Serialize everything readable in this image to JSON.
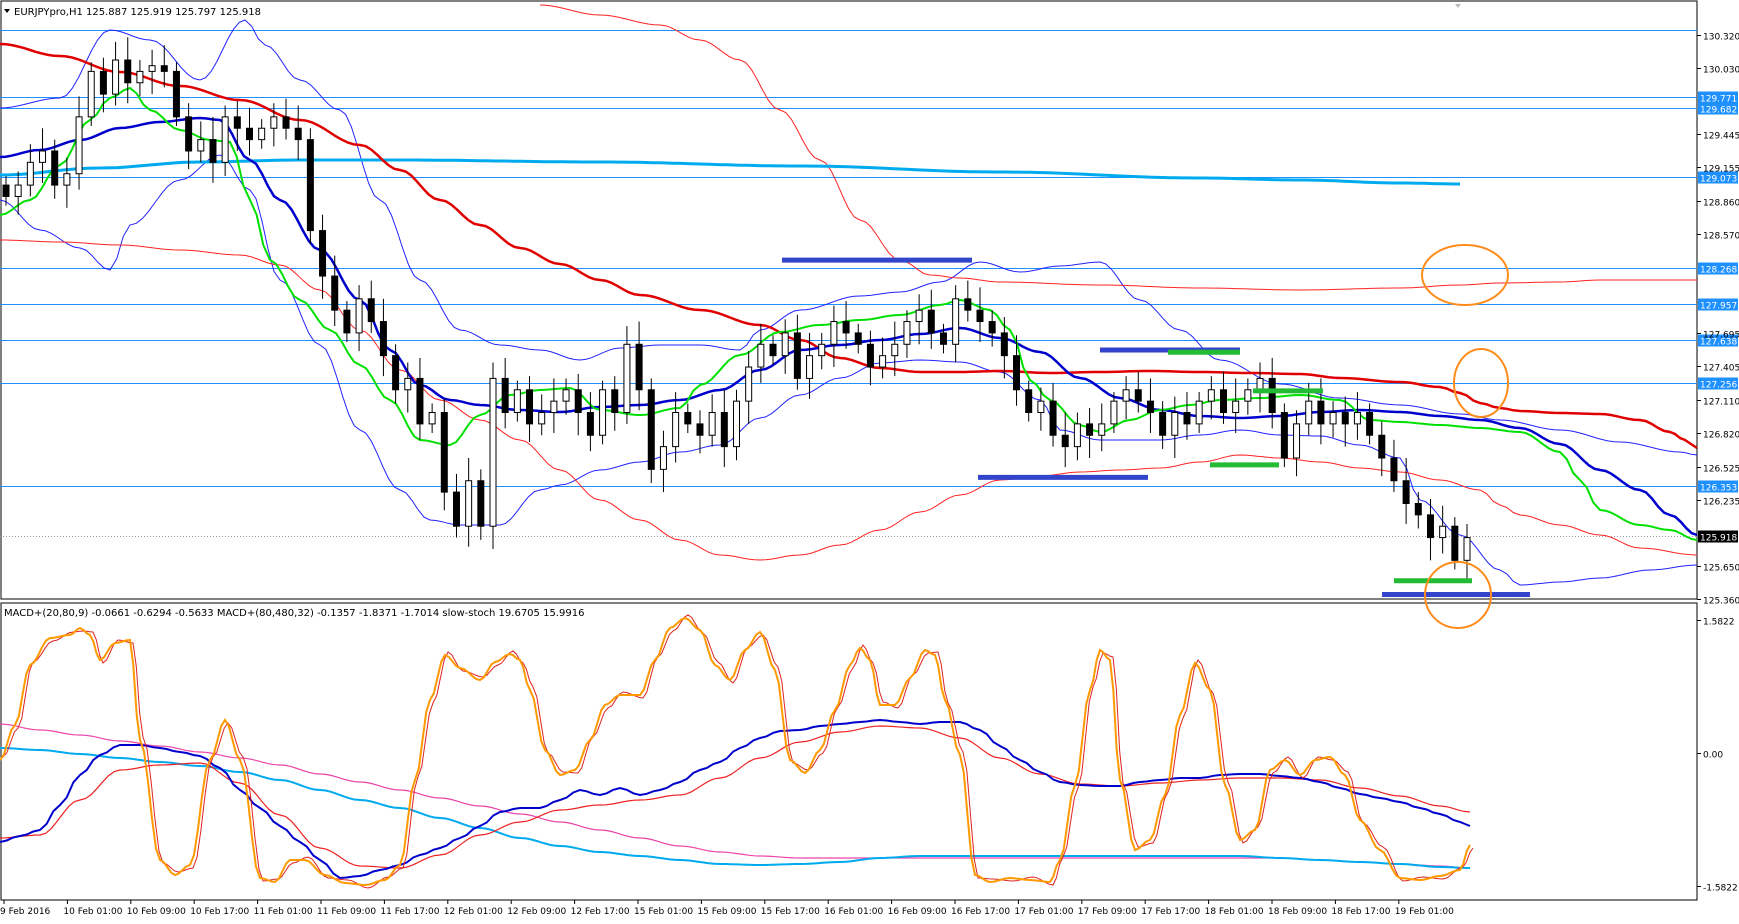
{
  "main": {
    "symbol_header": "EURJPYpro,H1",
    "ohlc_header": "125.887 125.919 125.797 125.918",
    "y_ticks": [
      "130.320",
      "130.030",
      "129.445",
      "129.155",
      "128.860",
      "128.570",
      "127.695",
      "127.405",
      "127.110",
      "126.820",
      "126.525",
      "126.235",
      "125.650",
      "125.360"
    ],
    "y_tick_values": [
      130.32,
      130.03,
      129.445,
      129.155,
      128.86,
      128.57,
      127.695,
      127.405,
      127.11,
      126.82,
      126.525,
      126.235,
      125.65,
      125.36
    ],
    "levels": [
      {
        "label": "",
        "value": 130.36
      },
      {
        "label": "129.771",
        "value": 129.771
      },
      {
        "label": "129.682",
        "value": 129.682
      },
      {
        "label": "129.073",
        "value": 129.073
      },
      {
        "label": "128.268",
        "value": 128.268
      },
      {
        "label": "127.957",
        "value": 127.957
      },
      {
        "label": "127.638",
        "value": 127.638
      },
      {
        "label": "127.256",
        "value": 127.256
      },
      {
        "label": "126.353",
        "value": 126.353
      }
    ],
    "price_label": "125.918",
    "price_value": 125.918
  },
  "indicator": {
    "header": "MACD+(20,80,9) -0.0661 -0.6294 -0.5633   MACD+(80,480,32) -0.1357 -1.8371 -1.7014   slow-stoch 19.6705 15.9916",
    "y_ticks": [
      "1.5822",
      "0.00",
      "-1.5822"
    ],
    "y_tick_values": [
      1.5822,
      0,
      -1.5822
    ]
  },
  "x_axis": {
    "labels": [
      "9 Feb 2016",
      "10 Feb 01:00",
      "10 Feb 09:00",
      "10 Feb 17:00",
      "11 Feb 01:00",
      "11 Feb 09:00",
      "11 Feb 17:00",
      "12 Feb 01:00",
      "12 Feb 09:00",
      "12 Feb 17:00",
      "15 Feb 01:00",
      "15 Feb 09:00",
      "15 Feb 17:00",
      "16 Feb 01:00",
      "16 Feb 09:00",
      "16 Feb 17:00",
      "17 Feb 01:00",
      "17 Feb 09:00",
      "17 Feb 17:00",
      "18 Feb 01:00",
      "18 Feb 09:00",
      "18 Feb 17:00",
      "19 Feb 01:00"
    ]
  },
  "colors": {
    "level_line": "#1e90ff",
    "label_bg": "#1e90ff",
    "ema_fast": "#00e000",
    "ema_mid": "#0000cc",
    "ema_slow": "#e00000",
    "long_ma": "#00aaee",
    "bands_blue": "#2222ff",
    "bands_red": "#ff2222",
    "support_blue": "#3344cc",
    "support_green": "#22bb33",
    "circle": "#ff8c1a",
    "stoch": "#ff9900",
    "stoch_signal": "#dd2222",
    "macd_fast": "#0000cc",
    "macd_fast_signal": "#ee2222",
    "macd_slow": "#00aaee",
    "macd_slow_signal": "#ee44aa"
  },
  "chart_data": [
    {
      "type": "candlestick",
      "title": "EURJPYpro,H1",
      "ylim": [
        125.3,
        130.6
      ],
      "candles_close": [
        128.9,
        129.0,
        129.2,
        129.3,
        129.0,
        129.1,
        129.6,
        130.0,
        129.8,
        130.1,
        129.9,
        130.0,
        130.05,
        130.0,
        129.6,
        129.3,
        129.4,
        129.2,
        129.6,
        129.5,
        129.4,
        129.5,
        129.6,
        129.5,
        129.4,
        128.6,
        128.2,
        127.9,
        127.7,
        128.0,
        127.8,
        127.5,
        127.2,
        127.3,
        126.9,
        127.0,
        126.3,
        126.0,
        126.4,
        126.0,
        127.3,
        127.0,
        127.2,
        126.9,
        127.0,
        127.1,
        127.2,
        127.0,
        126.8,
        127.2,
        127.0,
        127.6,
        127.2,
        126.5,
        126.7,
        127.0,
        126.9,
        126.8,
        127.0,
        126.7,
        127.1,
        127.4,
        127.6,
        127.5,
        127.7,
        127.3,
        127.5,
        127.6,
        127.8,
        127.7,
        127.6,
        127.4,
        127.5,
        127.6,
        127.8,
        127.9,
        127.7,
        127.6,
        128.0,
        127.9,
        127.8,
        127.7,
        127.5,
        127.2,
        127.0,
        127.1,
        126.8,
        126.7,
        126.9,
        126.8,
        126.9,
        127.1,
        127.2,
        127.1,
        127.0,
        126.8,
        127.0,
        126.9,
        127.1,
        127.2,
        127.0,
        127.1,
        127.2,
        127.3,
        127.0,
        126.6,
        126.9,
        127.1,
        126.9,
        127.0,
        126.9,
        127.0,
        126.8,
        126.6,
        126.4,
        126.2,
        126.1,
        125.9,
        126.0,
        125.7,
        125.9
      ],
      "fast_ema_last": 125.95,
      "mid_ema_last": 126.32,
      "slow_ema_last": 127.0,
      "long_ma_last": 128.95,
      "support_segments": [
        {
          "price": 128.34,
          "color": "blue"
        },
        {
          "price": 126.43,
          "color": "blue"
        },
        {
          "price": 127.55,
          "color": "blue"
        },
        {
          "price": 127.53,
          "color": "green"
        },
        {
          "price": 127.19,
          "color": "green"
        },
        {
          "price": 126.54,
          "color": "green"
        },
        {
          "price": 125.52,
          "color": "green"
        },
        {
          "price": 125.4,
          "color": "blue"
        }
      ]
    },
    {
      "type": "line",
      "title": "MACD+ / slow-stoch",
      "series_last": {
        "macd_20_80_9": -0.6294,
        "signal_20_80_9": -0.5633,
        "macd_80_480_32": -1.8371,
        "signal_80_480_32": -1.7014,
        "stoch_k": 19.6705,
        "stoch_d": 15.9916
      }
    }
  ]
}
